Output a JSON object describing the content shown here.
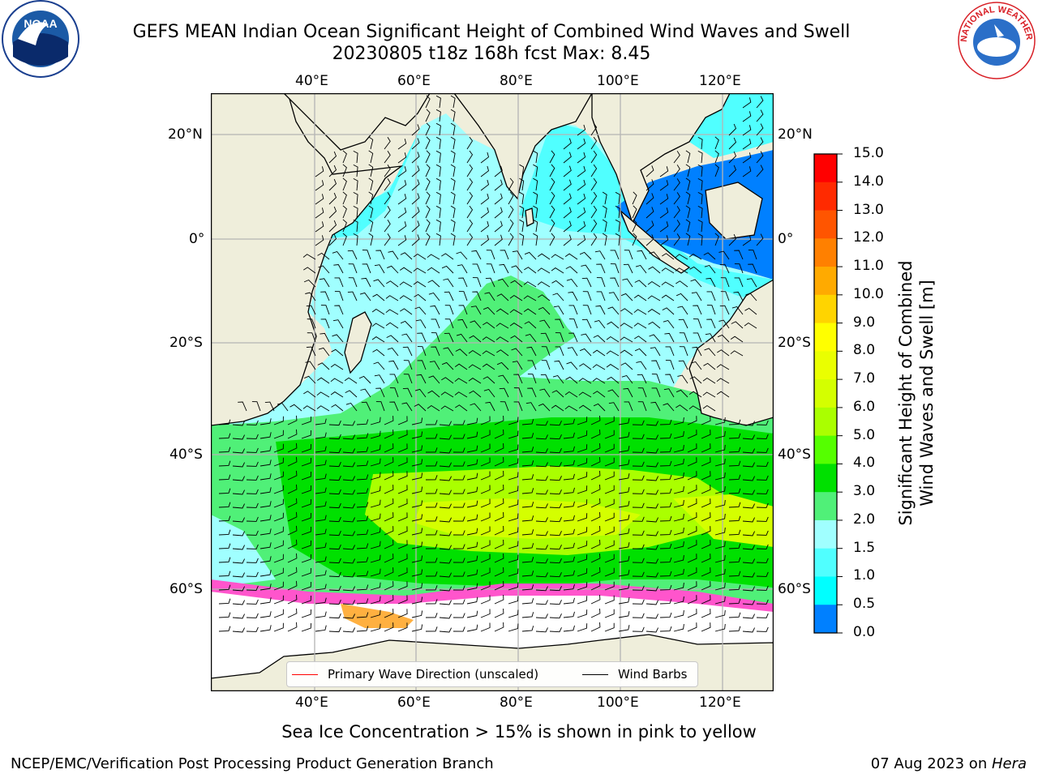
{
  "title": {
    "line1": "GEFS MEAN Indian Ocean Significant Height of Combined Wind Waves and Swell",
    "line2": "20230805 t18z 168h fcst   Max: 8.45"
  },
  "axes": {
    "lon_top": [
      "40°E",
      "60°E",
      "80°E",
      "100°E",
      "120°E"
    ],
    "lon_bottom": [
      "40°E",
      "60°E",
      "80°E",
      "100°E",
      "120°E"
    ],
    "lat_left": [
      "20°N",
      "0°",
      "20°S",
      "40°S",
      "60°S"
    ],
    "lat_right": [
      "20°N",
      "0°",
      "20°S",
      "40°S",
      "60°S"
    ]
  },
  "colorbar": {
    "title_line1": "Significant Height of Combined",
    "title_line2": "Wind Waves and Swell [m]",
    "labels": [
      "15.0",
      "14.0",
      "13.0",
      "12.0",
      "11.0",
      "10.0",
      "9.0",
      "8.0",
      "7.0",
      "6.0",
      "5.0",
      "4.0",
      "3.0",
      "2.0",
      "1.5",
      "1.0",
      "0.5",
      "0.0"
    ],
    "colors": [
      "#ff0000",
      "#ff2a00",
      "#ff5500",
      "#ff8000",
      "#ffaa00",
      "#ffd400",
      "#ffff00",
      "#eaff00",
      "#d4ff00",
      "#aaff00",
      "#55ff00",
      "#00e000",
      "#50f078",
      "#a0ffff",
      "#50ffff",
      "#00ffff",
      "#0080ff",
      "#0000ff"
    ]
  },
  "legend": {
    "wave_direction": "Primary Wave Direction (unscaled)",
    "wind_barbs": "Wind Barbs",
    "wave_color": "#ff0000",
    "barb_color": "#000000"
  },
  "sea_ice_note": "Sea Ice Concentration > 15% is shown in pink to yellow",
  "footer": {
    "left": "NCEP/EMC/Verification Post Processing Product Generation Branch",
    "right_date": "07 Aug 2023 on ",
    "right_machine": "Hera"
  },
  "logos": {
    "noaa_text": "NOAA",
    "nws_text": "NATIONAL WEATHER SERVICE"
  },
  "colors": {
    "land": "#efeedb",
    "ice_free_antarctica": "#ffffff",
    "sea_ice_pink": "#ff55cc",
    "sea_ice_orange": "#ffb040",
    "grid": "#b4b4b4"
  }
}
